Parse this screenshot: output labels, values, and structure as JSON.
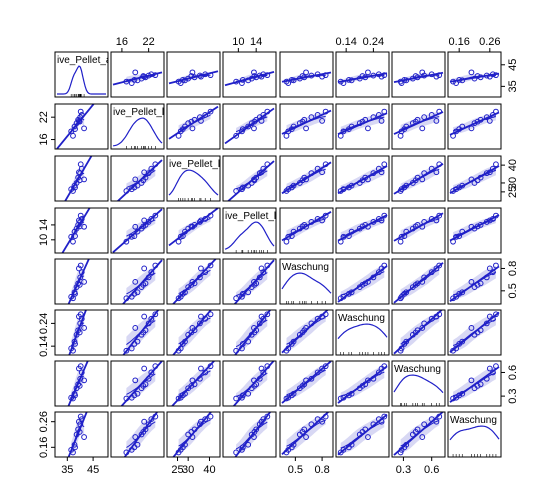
{
  "chart_data": {
    "type": "scatter",
    "variables": [
      {
        "label": "ive_Pellet_a",
        "ticks": [
          35,
          45
        ],
        "tick_labels": [
          "35",
          "45"
        ],
        "range": [
          31,
          50
        ],
        "tick_side": "bottom"
      },
      {
        "label": "ive_Pellet_l",
        "ticks": [
          16,
          22
        ],
        "tick_labels": [
          "16",
          "22"
        ],
        "range": [
          14,
          25
        ],
        "tick_side": "top"
      },
      {
        "label": "ive_Pellet_l",
        "ticks": [
          25,
          30,
          40
        ],
        "tick_labels": [
          "25",
          "30",
          "40"
        ],
        "range": [
          21,
          44
        ],
        "tick_side": "bottom"
      },
      {
        "label": "ive_Pellet_l",
        "ticks": [
          10,
          14
        ],
        "tick_labels": [
          "10",
          "14"
        ],
        "range": [
          7,
          18
        ],
        "tick_side": "top"
      },
      {
        "label": "Waschung",
        "ticks": [
          0.5,
          0.8
        ],
        "tick_labels": [
          "0.5",
          "0.8"
        ],
        "range": [
          0.35,
          0.9
        ],
        "tick_side": "bottom"
      },
      {
        "label": "Waschung",
        "ticks": [
          0.14,
          0.24
        ],
        "tick_labels": [
          "0.14",
          "0.24"
        ],
        "range": [
          0.11,
          0.29
        ],
        "tick_side": "top"
      },
      {
        "label": "Waschung",
        "ticks": [
          0.3,
          0.6
        ],
        "tick_labels": [
          "0.3",
          "0.6"
        ],
        "range": [
          0.2,
          0.72
        ],
        "tick_side": "bottom"
      },
      {
        "label": "Waschung",
        "ticks": [
          0.16,
          0.26
        ],
        "tick_labels": [
          "0.16",
          "0.26"
        ],
        "range": [
          0.13,
          0.29
        ],
        "tick_side": "top"
      }
    ],
    "observations": [
      [
        36.5,
        18.2,
        26.5,
        10.8,
        0.42,
        0.13,
        0.28,
        0.15
      ],
      [
        37.8,
        19.5,
        28.5,
        12.2,
        0.48,
        0.16,
        0.33,
        0.17
      ],
      [
        38.6,
        20.4,
        30.0,
        13.0,
        0.55,
        0.19,
        0.4,
        0.21
      ],
      [
        39.2,
        21.3,
        33.0,
        14.0,
        0.6,
        0.21,
        0.45,
        0.23
      ],
      [
        40.0,
        22.0,
        35.5,
        14.8,
        0.68,
        0.24,
        0.52,
        0.25
      ],
      [
        40.6,
        22.6,
        38.0,
        15.6,
        0.75,
        0.26,
        0.6,
        0.27
      ],
      [
        39.5,
        21.0,
        36.0,
        15.2,
        0.8,
        0.27,
        0.65,
        0.26
      ],
      [
        41.5,
        19.0,
        32.0,
        13.5,
        0.62,
        0.22,
        0.5,
        0.2
      ],
      [
        38.0,
        18.8,
        27.5,
        11.0,
        0.46,
        0.15,
        0.31,
        0.16
      ],
      [
        40.2,
        23.5,
        40.5,
        16.5,
        0.84,
        0.28,
        0.68,
        0.28
      ],
      [
        37.2,
        17.0,
        25.5,
        9.5,
        0.4,
        0.12,
        0.27,
        0.14
      ],
      [
        39.8,
        20.8,
        31.5,
        13.6,
        0.58,
        0.2,
        0.43,
        0.22
      ]
    ],
    "diagonal": "density",
    "fit_lines": [
      "linear",
      "loess",
      "spread-band"
    ],
    "colors": {
      "points": "#2020c8",
      "band": "#c8c8f0",
      "panel_border": "#000000"
    }
  }
}
